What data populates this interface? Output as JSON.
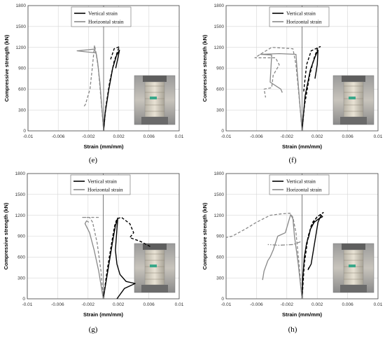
{
  "chart_data": [
    {
      "type": "line",
      "panel_label": "(e)",
      "xlabel": "Strain (mm/mm)",
      "ylabel": "Compressive strength (kN)",
      "xlim": [
        -0.01,
        0.01
      ],
      "ylim": [
        0,
        1800
      ],
      "xticks": [
        "-0.01",
        "-0.006",
        "-0.002",
        "0.002",
        "0.006",
        "0.01"
      ],
      "yticks": [
        "0",
        "300",
        "600",
        "900",
        "1200",
        "1500",
        "1800"
      ],
      "legend": [
        "Vertical strain",
        "Horizontal strain"
      ],
      "photo_inset": "specimen-photo",
      "series": [
        {
          "name": "Vertical strain",
          "style": "solid",
          "color": "#000000",
          "points": [
            [
              0,
              0
            ],
            [
              0.0002,
              250
            ],
            [
              0.0007,
              600
            ],
            [
              0.0012,
              900
            ],
            [
              0.0017,
              1080
            ],
            [
              0.0021,
              1160
            ],
            [
              0.0019,
              1050
            ],
            [
              0.0016,
              900
            ]
          ]
        },
        {
          "name": "Vertical strain",
          "style": "dashed",
          "color": "#000000",
          "points": [
            [
              0,
              0
            ],
            [
              0.0003,
              350
            ],
            [
              0.0008,
              700
            ],
            [
              0.0014,
              1000
            ],
            [
              0.0019,
              1160
            ],
            [
              0.0021,
              1210
            ],
            [
              0.0014,
              1180
            ],
            [
              0.0009,
              1020
            ]
          ]
        },
        {
          "name": "Horizontal strain",
          "style": "solid",
          "color": "#888888",
          "points": [
            [
              0,
              0
            ],
            [
              -0.0002,
              300
            ],
            [
              -0.0005,
              700
            ],
            [
              -0.0008,
              1000
            ],
            [
              -0.001,
              1120
            ],
            [
              -0.0035,
              1150
            ],
            [
              -0.0012,
              1175
            ],
            [
              -0.0009,
              1080
            ]
          ]
        },
        {
          "name": "Horizontal strain",
          "style": "dashed",
          "color": "#888888",
          "points": [
            [
              0,
              0
            ],
            [
              -0.0003,
              400
            ],
            [
              -0.0007,
              900
            ],
            [
              -0.001,
              1120
            ],
            [
              -0.0012,
              1230
            ],
            [
              -0.0015,
              900
            ],
            [
              -0.0018,
              600
            ],
            [
              -0.0024,
              380
            ],
            [
              -0.0026,
              350
            ]
          ]
        }
      ]
    },
    {
      "type": "line",
      "panel_label": "(f)",
      "xlabel": "Strain (mm/mm)",
      "ylabel": "Compressive strength (kN)",
      "xlim": [
        -0.01,
        0.01
      ],
      "ylim": [
        0,
        1800
      ],
      "xticks": [
        "-0.01",
        "-0.006",
        "-0.002",
        "0.002",
        "0.006",
        "0.01"
      ],
      "yticks": [
        "0",
        "300",
        "600",
        "900",
        "1200",
        "1500",
        "1800"
      ],
      "legend": [
        "Vertical strain",
        "Horizontal strain"
      ],
      "photo_inset": "specimen-photo",
      "series": [
        {
          "name": "Vertical strain",
          "style": "solid",
          "color": "#000000",
          "points": [
            [
              0,
              0
            ],
            [
              0.0004,
              500
            ],
            [
              0.0011,
              880
            ],
            [
              0.0017,
              1060
            ],
            [
              0.0021,
              1160
            ],
            [
              0.002,
              950
            ],
            [
              0.0017,
              750
            ]
          ]
        },
        {
          "name": "Vertical strain",
          "style": "dashed",
          "color": "#000000",
          "points": [
            [
              0,
              0
            ],
            [
              0.0003,
              350
            ],
            [
              0.001,
              800
            ],
            [
              0.0016,
              1050
            ],
            [
              0.0021,
              1200
            ],
            [
              0.0024,
              1210
            ],
            [
              0.0012,
              1150
            ],
            [
              0.0006,
              950
            ],
            [
              0.0003,
              650
            ],
            [
              0.0002,
              550
            ]
          ]
        },
        {
          "name": "Horizontal strain",
          "style": "solid",
          "color": "#888888",
          "points": [
            [
              0,
              0
            ],
            [
              -0.0003,
              400
            ],
            [
              -0.0006,
              800
            ],
            [
              -0.0008,
              1100
            ],
            [
              -0.003,
              1110
            ],
            [
              -0.0055,
              1100
            ],
            [
              -0.004,
              1090
            ],
            [
              -0.0042,
              700
            ],
            [
              -0.0028,
              600
            ],
            [
              -0.0026,
              550
            ]
          ]
        },
        {
          "name": "Horizontal strain",
          "style": "dashed",
          "color": "#888888",
          "points": [
            [
              0,
              0
            ],
            [
              -0.0004,
              500
            ],
            [
              -0.0008,
              950
            ],
            [
              -0.0012,
              1180
            ],
            [
              -0.004,
              1200
            ],
            [
              -0.0055,
              1100
            ],
            [
              -0.0062,
              1050
            ],
            [
              -0.0035,
              1050
            ],
            [
              -0.003,
              950
            ],
            [
              -0.0038,
              800
            ],
            [
              -0.004,
              620
            ],
            [
              -0.005,
              600
            ],
            [
              -0.0048,
              480
            ]
          ]
        }
      ]
    },
    {
      "type": "line",
      "panel_label": "(g)",
      "xlabel": "Strain (mm/mm)",
      "ylabel": "Compressive strength (kN)",
      "xlim": [
        -0.01,
        0.01
      ],
      "ylim": [
        0,
        1800
      ],
      "xticks": [
        "-0.01",
        "-0.006",
        "-0.002",
        "0.002",
        "0.006",
        "0.01"
      ],
      "yticks": [
        "0",
        "300",
        "600",
        "900",
        "1200",
        "1500",
        "1800"
      ],
      "legend": [
        "Vertical strain",
        "Horizontal strain"
      ],
      "photo_inset": "specimen-photo",
      "series": [
        {
          "name": "Vertical strain",
          "style": "solid",
          "color": "#000000",
          "points": [
            [
              0,
              0
            ],
            [
              0.0006,
              400
            ],
            [
              0.0012,
              800
            ],
            [
              0.0016,
              1050
            ],
            [
              0.0019,
              1160
            ],
            [
              0.0018,
              1000
            ],
            [
              0.0016,
              700
            ],
            [
              0.0018,
              500
            ],
            [
              0.0022,
              350
            ],
            [
              0.003,
              250
            ],
            [
              0.0042,
              220
            ],
            [
              0.0028,
              150
            ],
            [
              0.0018,
              0
            ]
          ]
        },
        {
          "name": "Vertical strain",
          "style": "dashed",
          "color": "#000000",
          "points": [
            [
              0,
              0
            ],
            [
              0.0005,
              400
            ],
            [
              0.0011,
              800
            ],
            [
              0.0015,
              1050
            ],
            [
              0.0018,
              1150
            ],
            [
              0.0024,
              1170
            ],
            [
              0.0035,
              1080
            ],
            [
              0.004,
              950
            ],
            [
              0.0035,
              880
            ],
            [
              0.005,
              820
            ],
            [
              0.0062,
              750
            ]
          ]
        },
        {
          "name": "Horizontal strain",
          "style": "solid",
          "color": "#888888",
          "points": [
            [
              0,
              0
            ],
            [
              -0.0006,
              400
            ],
            [
              -0.0012,
              700
            ],
            [
              -0.0018,
              950
            ],
            [
              -0.0024,
              1080
            ],
            [
              -0.0022,
              1120
            ],
            [
              -0.0019,
              1100
            ]
          ]
        },
        {
          "name": "Horizontal strain",
          "style": "dashed",
          "color": "#888888",
          "points": [
            [
              0,
              0
            ],
            [
              -0.0003,
              400
            ],
            [
              -0.0008,
              800
            ],
            [
              -0.0014,
              1100
            ],
            [
              -0.0018,
              1170
            ],
            [
              -0.0028,
              1170
            ],
            [
              -0.0012,
              1170
            ],
            [
              -0.0004,
              1170
            ]
          ]
        }
      ]
    },
    {
      "type": "line",
      "panel_label": "(h)",
      "xlabel": "Strain (mm/mm)",
      "ylabel": "Compressive strength (kN)",
      "xlim": [
        -0.01,
        0.01
      ],
      "ylim": [
        0,
        1800
      ],
      "xticks": [
        "-0.01",
        "-0.006",
        "-0.002",
        "0.002",
        "0.006",
        "0.01"
      ],
      "yticks": [
        "0",
        "300",
        "600",
        "900",
        "1200",
        "1500",
        "1800"
      ],
      "legend": [
        "Vertical strain",
        "Horizontal strain"
      ],
      "photo_inset": "specimen-photo",
      "series": [
        {
          "name": "Vertical strain",
          "style": "solid",
          "color": "#000000",
          "points": [
            [
              0,
              0
            ],
            [
              0.0001,
              300
            ],
            [
              0.0003,
              600
            ],
            [
              0.0006,
              800
            ],
            [
              0.0009,
              900
            ],
            [
              0.0011,
              1000
            ],
            [
              0.0016,
              1100
            ],
            [
              0.0022,
              1150
            ],
            [
              0.0027,
              1180
            ],
            [
              0.0025,
              1200
            ],
            [
              0.0021,
              1100
            ],
            [
              0.0012,
              500
            ],
            [
              0.0008,
              420
            ],
            [
              0.0009,
              450
            ]
          ]
        },
        {
          "name": "Vertical strain",
          "style": "dashed",
          "color": "#000000",
          "points": [
            [
              0,
              0
            ],
            [
              0.0003,
              500
            ],
            [
              0.0008,
              900
            ],
            [
              0.0014,
              1100
            ],
            [
              0.002,
              1180
            ],
            [
              0.0026,
              1220
            ],
            [
              0.0028,
              1240
            ],
            [
              0.002,
              1180
            ],
            [
              0.0012,
              1050
            ],
            [
              0.0006,
              800
            ]
          ]
        },
        {
          "name": "Horizontal strain",
          "style": "solid",
          "color": "#888888",
          "points": [
            [
              0,
              0
            ],
            [
              -0.0005,
              500
            ],
            [
              -0.001,
              900
            ],
            [
              -0.0012,
              1150
            ],
            [
              -0.0015,
              1210
            ],
            [
              -0.0018,
              1100
            ],
            [
              -0.0022,
              950
            ],
            [
              -0.0032,
              900
            ],
            [
              -0.0035,
              800
            ],
            [
              -0.0038,
              700
            ],
            [
              -0.0042,
              600
            ],
            [
              -0.0045,
              550
            ],
            [
              -0.005,
              400
            ],
            [
              -0.0052,
              270
            ]
          ]
        },
        {
          "name": "Horizontal strain",
          "style": "dashed",
          "color": "#888888",
          "points": [
            [
              0,
              0
            ],
            [
              -0.0004,
              500
            ],
            [
              -0.0008,
              950
            ],
            [
              -0.0012,
              1170
            ],
            [
              -0.0016,
              1230
            ],
            [
              -0.0028,
              1220
            ],
            [
              -0.0042,
              1200
            ],
            [
              -0.006,
              1100
            ],
            [
              -0.0075,
              1000
            ],
            [
              -0.0092,
              900
            ],
            [
              -0.01,
              880
            ]
          ]
        },
        {
          "name": "Horizontal strain",
          "style": "dash-dot",
          "color": "#888888",
          "points": [
            [
              -0.0002,
              820
            ],
            [
              -0.0012,
              780
            ],
            [
              -0.003,
              770
            ],
            [
              -0.0045,
              780
            ]
          ]
        }
      ]
    }
  ]
}
